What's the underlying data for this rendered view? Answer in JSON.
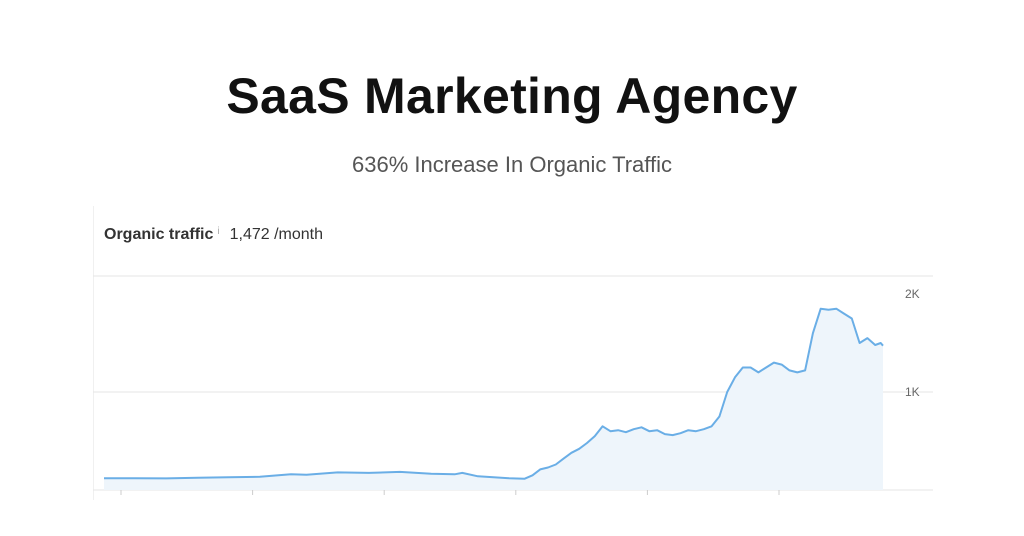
{
  "header": {
    "title": "SaaS Marketing Agency",
    "subtitle": "636% Increase In Organic Traffic"
  },
  "metric": {
    "label": "Organic traffic",
    "info_icon": "info-icon",
    "value": "1,472 /month"
  },
  "colors": {
    "line": "#6aaee6",
    "area": "#eef5fb",
    "grid": "#e6e6e6",
    "title": "#111111",
    "subtitle": "#555555"
  },
  "chart_data": {
    "type": "area",
    "title": "Organic traffic",
    "xlabel": "",
    "ylabel": "",
    "ylim": [
      0,
      2000
    ],
    "y_ticks": [
      {
        "value": 2000,
        "label": "2K"
      },
      {
        "value": 1000,
        "label": "1K"
      }
    ],
    "grid": true,
    "x_ticks_count": 6,
    "x_index_range": [
      0,
      100
    ],
    "series": [
      {
        "x": [
          0,
          4,
          8,
          12,
          16,
          20,
          24,
          26,
          30,
          34,
          38,
          42,
          45,
          46,
          48,
          50,
          52,
          54,
          55,
          56,
          57,
          58,
          59,
          60,
          61,
          62,
          63,
          64,
          65,
          66,
          67,
          68,
          69,
          70,
          71,
          72,
          73,
          74,
          75,
          76,
          77,
          78,
          79,
          80,
          81,
          82,
          83,
          84,
          85,
          86,
          87,
          88,
          89,
          90,
          91,
          92,
          93,
          94,
          95,
          96,
          97,
          98,
          99,
          99.7,
          100
        ],
        "values": [
          120,
          120,
          118,
          125,
          130,
          135,
          160,
          155,
          180,
          175,
          185,
          165,
          160,
          175,
          140,
          130,
          120,
          115,
          150,
          210,
          230,
          260,
          320,
          380,
          420,
          480,
          550,
          650,
          600,
          610,
          590,
          620,
          640,
          600,
          610,
          570,
          560,
          580,
          610,
          600,
          620,
          650,
          750,
          1000,
          1150,
          1250,
          1250,
          1200,
          1250,
          1300,
          1280,
          1220,
          1200,
          1220,
          1600,
          1850,
          1840,
          1850,
          1800,
          1750,
          1500,
          1550,
          1480,
          1500,
          1472
        ]
      }
    ]
  }
}
